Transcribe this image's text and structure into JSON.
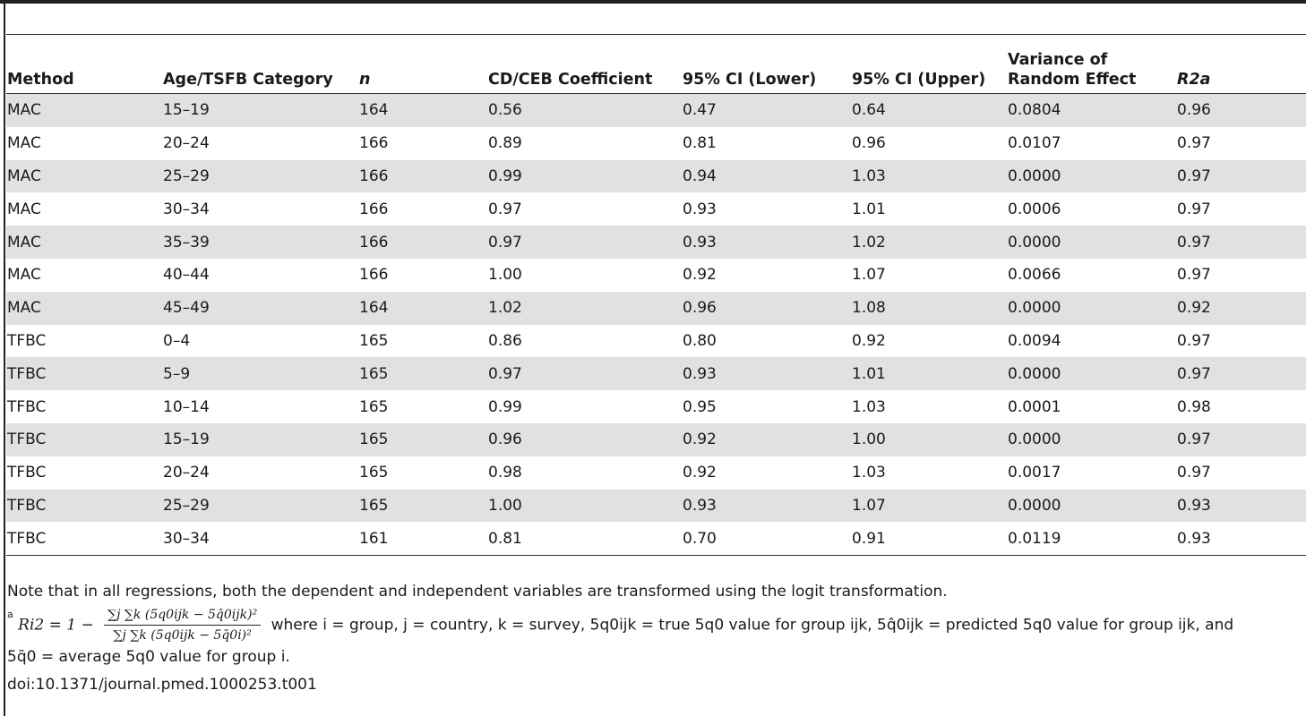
{
  "table": {
    "headers": [
      "Method",
      "Age/TSFB Category",
      "n",
      "CD/CEB Coefficient",
      "95% CI (Lower)",
      "95% CI (Upper)",
      "Variance of Random Effect",
      "R2a"
    ],
    "rows": [
      [
        "MAC",
        "15–19",
        "164",
        "0.56",
        "0.47",
        "0.64",
        "0.0804",
        "0.96"
      ],
      [
        "MAC",
        "20–24",
        "166",
        "0.89",
        "0.81",
        "0.96",
        "0.0107",
        "0.97"
      ],
      [
        "MAC",
        "25–29",
        "166",
        "0.99",
        "0.94",
        "1.03",
        "0.0000",
        "0.97"
      ],
      [
        "MAC",
        "30–34",
        "166",
        "0.97",
        "0.93",
        "1.01",
        "0.0006",
        "0.97"
      ],
      [
        "MAC",
        "35–39",
        "166",
        "0.97",
        "0.93",
        "1.02",
        "0.0000",
        "0.97"
      ],
      [
        "MAC",
        "40–44",
        "166",
        "1.00",
        "0.92",
        "1.07",
        "0.0066",
        "0.97"
      ],
      [
        "MAC",
        "45–49",
        "164",
        "1.02",
        "0.96",
        "1.08",
        "0.0000",
        "0.92"
      ],
      [
        "TFBC",
        "0–4",
        "165",
        "0.86",
        "0.80",
        "0.92",
        "0.0094",
        "0.97"
      ],
      [
        "TFBC",
        "5–9",
        "165",
        "0.97",
        "0.93",
        "1.01",
        "0.0000",
        "0.97"
      ],
      [
        "TFBC",
        "10–14",
        "165",
        "0.99",
        "0.95",
        "1.03",
        "0.0001",
        "0.98"
      ],
      [
        "TFBC",
        "15–19",
        "165",
        "0.96",
        "0.92",
        "1.00",
        "0.0000",
        "0.97"
      ],
      [
        "TFBC",
        "20–24",
        "165",
        "0.98",
        "0.92",
        "1.03",
        "0.0017",
        "0.97"
      ],
      [
        "TFBC",
        "25–29",
        "165",
        "1.00",
        "0.93",
        "1.07",
        "0.0000",
        "0.93"
      ],
      [
        "TFBC",
        "30–34",
        "161",
        "0.81",
        "0.70",
        "0.91",
        "0.0119",
        "0.93"
      ]
    ]
  },
  "footnotes": {
    "note": "Note that in all regressions, both the dependent and independent variables are transformed using the logit transformation.",
    "marker": "a",
    "formula_lhs": "Ri2 = 1 −",
    "formula_num": "∑j ∑k (5q0ijk − 5q̂0ijk)²",
    "formula_den": "∑j ∑k (5q0ijk − 5q̄0i)²",
    "definition": "where i = group, j = country, k = survey, 5q0ijk = true 5q0 value for group ijk, 5q̂0ijk = predicted 5q0 value for group ijk, and",
    "definition_cont": "5q̄0 = average 5q0 value for group i.",
    "doi": "doi:10.1371/journal.pmed.1000253.t001"
  },
  "colors": {
    "stripe": "#e1e1e3",
    "rule": "#333333",
    "text": "#1a1a1a"
  }
}
